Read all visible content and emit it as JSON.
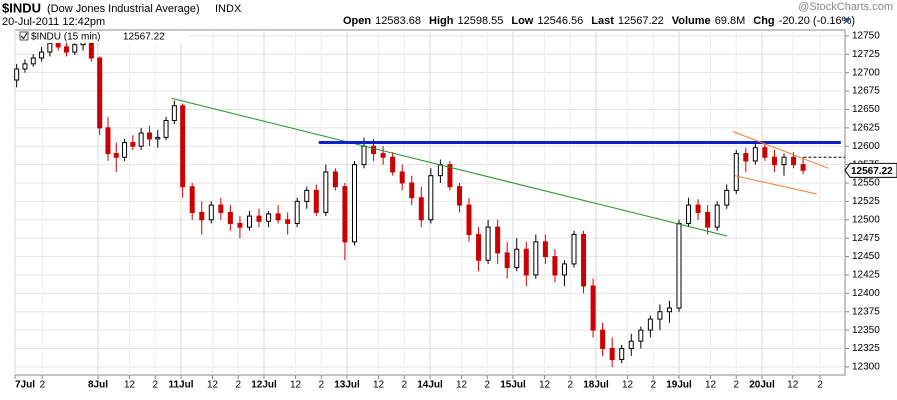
{
  "header": {
    "symbol": "$INDU",
    "name": "(Dow Jones Industrial Average)",
    "exchange": "INDX",
    "date": "20-Jul-2011 12:42pm",
    "brand": "@StockCharts.com",
    "stats": [
      {
        "label": "Open",
        "value": "12583.68"
      },
      {
        "label": "High",
        "value": "12598.55"
      },
      {
        "label": "Low",
        "value": "12546.56"
      },
      {
        "label": "Last",
        "value": "12567.22"
      },
      {
        "label": "Volume",
        "value": "69.8M"
      },
      {
        "label": "Chg",
        "value": "-20.20 (-0.16%)"
      }
    ]
  },
  "chart_data": {
    "type": "candlestick",
    "series_name": "$INDU (15 min)",
    "last": 12567.22,
    "up_color": "#000000",
    "down_color": "#cc0000",
    "grid": true,
    "x": [
      0.02,
      0.12,
      0.22,
      0.32,
      0.42,
      0.52,
      0.62,
      0.72,
      0.82,
      0.92,
      1.02,
      1.12,
      1.22,
      1.32,
      1.42,
      1.52,
      1.62,
      1.72,
      1.82,
      1.92,
      2.02,
      2.135,
      2.25,
      2.365,
      2.48,
      2.595,
      2.71,
      2.825,
      2.94,
      3.055,
      3.17,
      3.285,
      3.4,
      3.515,
      3.63,
      3.745,
      3.86,
      3.975,
      4.09,
      4.205,
      4.32,
      4.435,
      4.55,
      4.665,
      4.78,
      4.895,
      5.01,
      5.125,
      5.24,
      5.355,
      5.47,
      5.585,
      5.7,
      5.815,
      5.93,
      6.045,
      6.16,
      6.275,
      6.39,
      6.505,
      6.62,
      6.735,
      6.85,
      6.965,
      7.08,
      7.195,
      7.31,
      7.425,
      7.54,
      7.655,
      7.77,
      7.885,
      8.0,
      8.115,
      8.23,
      8.345,
      8.46,
      8.575,
      8.69,
      8.805,
      8.92,
      9.035,
      9.15,
      9.265,
      9.38,
      9.495
    ],
    "open": [
      12690,
      12705,
      12712,
      12720,
      12728,
      12740,
      12735,
      12728,
      12738,
      12742,
      12720,
      12625,
      12590,
      12585,
      12605,
      12600,
      12618,
      12610,
      12612,
      12635,
      12655,
      12545,
      12510,
      12500,
      12520,
      12510,
      12495,
      12490,
      12505,
      12498,
      12508,
      12500,
      12495,
      12525,
      12540,
      12510,
      12565,
      12545,
      12470,
      12575,
      12600,
      12590,
      12585,
      12565,
      12550,
      12530,
      12500,
      12560,
      12575,
      12545,
      12520,
      12480,
      12445,
      12490,
      12455,
      12435,
      12460,
      12425,
      12470,
      12450,
      12425,
      12440,
      12480,
      12410,
      12350,
      12325,
      12310,
      12325,
      12335,
      12350,
      12365,
      12375,
      12380,
      12495,
      12520,
      12510,
      12490,
      12520,
      12540,
      12590,
      12580,
      12598,
      12585,
      12575,
      12585,
      12575
    ],
    "high": [
      12712,
      12718,
      12725,
      12735,
      12745,
      12748,
      12742,
      12740,
      12746,
      12745,
      12722,
      12640,
      12605,
      12610,
      12615,
      12625,
      12628,
      12622,
      12640,
      12662,
      12658,
      12550,
      12525,
      12525,
      12530,
      12520,
      12505,
      12512,
      12515,
      12512,
      12520,
      12510,
      12530,
      12545,
      12548,
      12575,
      12570,
      12550,
      12580,
      12612,
      12610,
      12600,
      12592,
      12575,
      12560,
      12545,
      12570,
      12582,
      12580,
      12550,
      12530,
      12490,
      12500,
      12500,
      12470,
      12475,
      12470,
      12480,
      12480,
      12460,
      12445,
      12485,
      12485,
      12420,
      12360,
      12340,
      12330,
      12345,
      12355,
      12370,
      12385,
      12390,
      12500,
      12530,
      12528,
      12520,
      12525,
      12548,
      12595,
      12598,
      12605,
      12603,
      12595,
      12590,
      12592,
      12585
    ],
    "low": [
      12680,
      12700,
      12708,
      12715,
      12722,
      12730,
      12722,
      12724,
      12730,
      12715,
      12615,
      12580,
      12565,
      12580,
      12595,
      12595,
      12600,
      12598,
      12608,
      12630,
      12530,
      12500,
      12480,
      12495,
      12500,
      12485,
      12475,
      12485,
      12490,
      12490,
      12495,
      12480,
      12490,
      12515,
      12505,
      12505,
      12540,
      12445,
      12465,
      12570,
      12580,
      12575,
      12560,
      12540,
      12520,
      12490,
      12495,
      12550,
      12540,
      12510,
      12470,
      12430,
      12440,
      12440,
      12420,
      12430,
      12410,
      12420,
      12440,
      12415,
      12410,
      12435,
      12400,
      12340,
      12315,
      12300,
      12305,
      12315,
      12325,
      12340,
      12350,
      12360,
      12375,
      12490,
      12500,
      12480,
      12485,
      12515,
      12535,
      12565,
      12575,
      12580,
      12565,
      12560,
      12570,
      12562
    ],
    "close": [
      12705,
      12712,
      12720,
      12728,
      12740,
      12735,
      12728,
      12738,
      12742,
      12720,
      12625,
      12590,
      12585,
      12605,
      12600,
      12618,
      12610,
      12612,
      12635,
      12655,
      12545,
      12510,
      12500,
      12520,
      12510,
      12495,
      12490,
      12505,
      12498,
      12508,
      12500,
      12495,
      12525,
      12540,
      12510,
      12565,
      12545,
      12470,
      12575,
      12600,
      12590,
      12585,
      12565,
      12550,
      12530,
      12500,
      12560,
      12575,
      12545,
      12520,
      12480,
      12445,
      12490,
      12455,
      12435,
      12460,
      12425,
      12470,
      12450,
      12425,
      12440,
      12480,
      12410,
      12350,
      12325,
      12310,
      12325,
      12335,
      12350,
      12365,
      12375,
      12380,
      12495,
      12520,
      12510,
      12490,
      12520,
      12540,
      12590,
      12580,
      12598,
      12585,
      12575,
      12585,
      12575,
      12567.22
    ],
    "lines": [
      {
        "color": "#22912b",
        "x": [
          1.89,
          8.58
        ],
        "y": [
          12665,
          12478
        ]
      },
      {
        "color": "#1020c8",
        "x": [
          3.66,
          9.95
        ],
        "y": [
          12605,
          12605
        ]
      },
      {
        "color": "#f08030",
        "x": [
          8.65,
          9.8
        ],
        "y": [
          12620,
          12570
        ]
      },
      {
        "color": "#f08030",
        "x": [
          8.67,
          9.66
        ],
        "y": [
          12560,
          12535
        ]
      },
      {
        "color": "#000000",
        "dashed": true,
        "x": [
          9.5,
          10
        ],
        "y": [
          12585,
          12585
        ]
      }
    ],
    "xlim": [
      0,
      10
    ],
    "ylim": [
      12289,
      12758
    ],
    "yticks": [
      12300,
      12325,
      12350,
      12375,
      12400,
      12425,
      12450,
      12475,
      12500,
      12525,
      12550,
      12575,
      12600,
      12625,
      12650,
      12675,
      12700,
      12725,
      12750
    ],
    "xticks": [
      {
        "value": 0,
        "label": "7Jul"
      },
      {
        "value": 0.33,
        "label": "2"
      },
      {
        "value": 1,
        "label": "8Jul"
      },
      {
        "value": 1.38,
        "label": "12"
      },
      {
        "value": 1.69,
        "label": "2"
      },
      {
        "value": 2,
        "label": "11Jul"
      },
      {
        "value": 2.38,
        "label": "12"
      },
      {
        "value": 2.69,
        "label": "2"
      },
      {
        "value": 3,
        "label": "12Jul"
      },
      {
        "value": 3.38,
        "label": "12"
      },
      {
        "value": 3.69,
        "label": "2"
      },
      {
        "value": 4,
        "label": "13Jul"
      },
      {
        "value": 4.38,
        "label": "12"
      },
      {
        "value": 4.69,
        "label": "2"
      },
      {
        "value": 5,
        "label": "14Jul"
      },
      {
        "value": 5.38,
        "label": "12"
      },
      {
        "value": 5.69,
        "label": "2"
      },
      {
        "value": 6,
        "label": "15Jul"
      },
      {
        "value": 6.38,
        "label": "12"
      },
      {
        "value": 6.69,
        "label": "2"
      },
      {
        "value": 7,
        "label": "18Jul"
      },
      {
        "value": 7.38,
        "label": "12"
      },
      {
        "value": 7.69,
        "label": "2"
      },
      {
        "value": 8,
        "label": "19Jul"
      },
      {
        "value": 8.38,
        "label": "12"
      },
      {
        "value": 8.69,
        "label": "2"
      },
      {
        "value": 9,
        "label": "20Jul"
      },
      {
        "value": 9.37,
        "label": "12"
      },
      {
        "value": 9.7,
        "label": "2"
      }
    ]
  }
}
